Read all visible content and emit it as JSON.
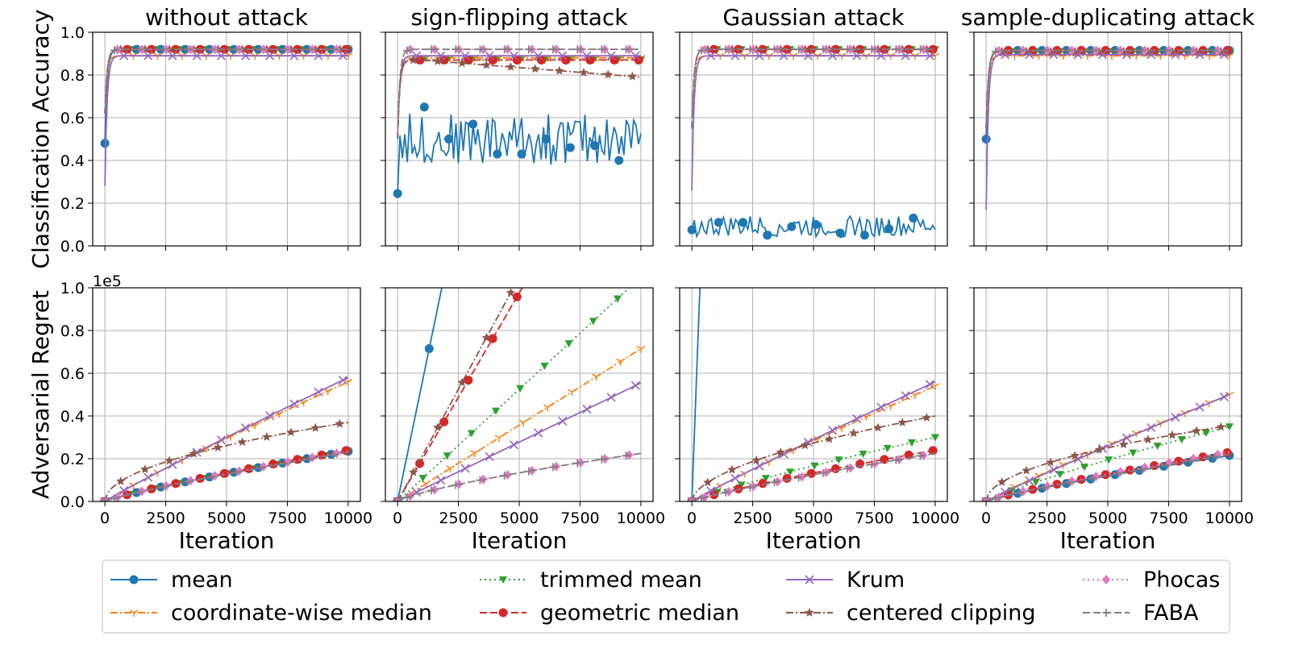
{
  "chart_data": {
    "type": "line",
    "panels": [
      {
        "row": "accuracy",
        "title": "without attack",
        "ylabel": "Classification Accuracy",
        "ylim": [
          0,
          1.0
        ],
        "yticks": [
          "0.0",
          "0.2",
          "0.4",
          "0.6",
          "0.8",
          "1.0"
        ],
        "xlim": [
          -500,
          10500
        ],
        "series": {
          "mean": {
            "start": 0.48,
            "level": 0.92
          },
          "coordinate-wise median": {
            "start": 0.62,
            "level": 0.89
          },
          "trimmed mean": {
            "start": 0.62,
            "level": 0.92
          },
          "geometric median": {
            "start": 0.62,
            "level": 0.92
          },
          "Krum": {
            "start": 0.28,
            "level": 0.89
          },
          "centered clipping": {
            "start": 0.62,
            "level": 0.92
          },
          "Phocas": {
            "start": 0.62,
            "level": 0.92
          },
          "FABA": {
            "start": 0.62,
            "level": 0.92
          }
        }
      },
      {
        "row": "accuracy",
        "title": "sign-flipping attack",
        "ylim": [
          0,
          1.0
        ],
        "xlim": [
          -500,
          10500
        ],
        "series": {
          "mean": {
            "start": 0.245,
            "noisy": true,
            "center": 0.5,
            "amp": 0.12,
            "markers": [
              0.245,
              0.65,
              0.5,
              0.57,
              0.43,
              0.43,
              0.5,
              0.46,
              0.47,
              0.4
            ]
          },
          "coordinate-wise median": {
            "start": 0.5,
            "level": 0.88
          },
          "trimmed mean": {
            "start": 0.5,
            "level": 0.87
          },
          "geometric median": {
            "start": 0.5,
            "level": 0.87
          },
          "Krum": {
            "start": 0.5,
            "level": 0.89
          },
          "centered clipping": {
            "start": 0.5,
            "level": 0.87,
            "end": 0.79
          },
          "Phocas": {
            "start": 0.5,
            "level": 0.92
          },
          "FABA": {
            "start": 0.5,
            "level": 0.92
          }
        }
      },
      {
        "row": "accuracy",
        "title": "Gaussian attack",
        "ylim": [
          0,
          1.0
        ],
        "xlim": [
          -500,
          10500
        ],
        "series": {
          "mean": {
            "start": 0.075,
            "noisy": true,
            "center": 0.09,
            "amp": 0.05,
            "markers": [
              0.075,
              0.11,
              0.11,
              0.05,
              0.09,
              0.1,
              0.06,
              0.05,
              0.08,
              0.13
            ]
          },
          "coordinate-wise median": {
            "start": 0.55,
            "level": 0.89
          },
          "trimmed mean": {
            "start": 0.55,
            "level": 0.92
          },
          "geometric median": {
            "start": 0.55,
            "level": 0.92
          },
          "Krum": {
            "start": 0.26,
            "level": 0.89
          },
          "centered clipping": {
            "start": 0.55,
            "level": 0.92
          },
          "Phocas": {
            "start": 0.55,
            "level": 0.92
          },
          "FABA": {
            "start": 0.55,
            "level": 0.92
          }
        }
      },
      {
        "row": "accuracy",
        "title": "sample-duplicating attack",
        "ylim": [
          0,
          1.0
        ],
        "xlim": [
          -500,
          10500
        ],
        "series": {
          "mean": {
            "start": 0.5,
            "level": 0.915
          },
          "coordinate-wise median": {
            "start": 0.55,
            "level": 0.89
          },
          "trimmed mean": {
            "start": 0.55,
            "level": 0.91
          },
          "geometric median": {
            "start": 0.55,
            "level": 0.915
          },
          "Krum": {
            "start": 0.17,
            "level": 0.895
          },
          "centered clipping": {
            "start": 0.55,
            "level": 0.91
          },
          "Phocas": {
            "start": 0.55,
            "level": 0.915
          },
          "FABA": {
            "start": 0.55,
            "level": 0.915
          }
        }
      },
      {
        "row": "regret",
        "ylabel": "Adversarial Regret",
        "xlabel": "Iteration",
        "ylim": [
          0,
          1.0
        ],
        "yticks": [
          "0.0",
          "0.2",
          "0.4",
          "0.6",
          "0.8",
          "1.0"
        ],
        "yscale_label": "1e5",
        "xlim": [
          -500,
          10500
        ],
        "xticks": [
          "0",
          "2500",
          "5000",
          "7500",
          "10000"
        ],
        "series": {
          "mean": {
            "end": 0.235,
            "p": 0.85
          },
          "coordinate-wise median": {
            "end": 0.56,
            "p": 0.93
          },
          "trimmed mean": {
            "end": 0.235,
            "p": 0.85
          },
          "geometric median": {
            "end": 0.24,
            "p": 0.85
          },
          "Krum": {
            "end": 0.58,
            "p": 0.95
          },
          "centered clipping": {
            "end": 0.37,
            "p": 0.5
          },
          "Phocas": {
            "end": 0.235,
            "p": 0.85
          },
          "FABA": {
            "end": 0.23,
            "p": 0.85
          }
        }
      },
      {
        "row": "regret",
        "xlabel": "Iteration",
        "ylim": [
          0,
          1.0
        ],
        "xlim": [
          -500,
          10500
        ],
        "xticks": [
          "0",
          "2500",
          "5000",
          "7500",
          "10000"
        ],
        "series": {
          "mean": {
            "end": 5.5,
            "p": 1.0
          },
          "coordinate-wise median": {
            "end": 0.715,
            "p": 1.0
          },
          "trimmed mean": {
            "end": 1.05,
            "p": 1.0
          },
          "geometric median": {
            "end": 1.95,
            "p": 1.0
          },
          "Krum": {
            "end": 0.555,
            "p": 1.0
          },
          "centered clipping": {
            "end": 2.1,
            "p": 1.0
          },
          "Phocas": {
            "end": 0.225,
            "p": 0.75
          },
          "FABA": {
            "end": 0.225,
            "p": 0.75
          }
        }
      },
      {
        "row": "regret",
        "xlabel": "Iteration",
        "ylim": [
          0,
          1.0
        ],
        "xlim": [
          -500,
          10500
        ],
        "xticks": [
          "0",
          "2500",
          "5000",
          "7500",
          "10000"
        ],
        "series": {
          "mean": {
            "end": 30,
            "p": 1.0
          },
          "coordinate-wise median": {
            "end": 0.54,
            "p": 0.93
          },
          "trimmed mean": {
            "end": 0.3,
            "p": 0.85
          },
          "geometric median": {
            "end": 0.24,
            "p": 0.85
          },
          "Krum": {
            "end": 0.56,
            "p": 0.95
          },
          "centered clipping": {
            "end": 0.4,
            "p": 0.55
          },
          "Phocas": {
            "end": 0.225,
            "p": 0.85
          },
          "FABA": {
            "end": 0.225,
            "p": 0.85
          }
        }
      },
      {
        "row": "regret",
        "xlabel": "Iteration",
        "ylim": [
          0,
          1.0
        ],
        "xlim": [
          -500,
          10500
        ],
        "xticks": [
          "0",
          "2500",
          "5000",
          "7500",
          "10000"
        ],
        "series": {
          "mean": {
            "end": 0.215,
            "p": 0.85
          },
          "coordinate-wise median": {
            "end": 0.5,
            "p": 0.93
          },
          "trimmed mean": {
            "end": 0.35,
            "p": 0.85
          },
          "geometric median": {
            "end": 0.23,
            "p": 0.85
          },
          "Krum": {
            "end": 0.5,
            "p": 0.95
          },
          "centered clipping": {
            "end": 0.355,
            "p": 0.5
          },
          "Phocas": {
            "end": 0.23,
            "p": 0.85
          },
          "FABA": {
            "end": 0.22,
            "p": 0.85
          }
        }
      }
    ],
    "legend": {
      "placement": "bottom",
      "entries": [
        {
          "label": "mean",
          "color": "#1f77b4",
          "dash": "solid",
          "marker": "circle"
        },
        {
          "label": "coordinate-wise median",
          "color": "#ff7f0e",
          "dash": "dashdot",
          "marker": "tri"
        },
        {
          "label": "trimmed mean",
          "color": "#2ca02c",
          "dash": "dotted",
          "marker": "triangle-down"
        },
        {
          "label": "geometric median",
          "color": "#d62728",
          "dash": "dashed",
          "marker": "circle"
        },
        {
          "label": "Krum",
          "color": "#9467bd",
          "dash": "solid",
          "marker": "x"
        },
        {
          "label": "centered clipping",
          "color": "#8c564b",
          "dash": "dashdot",
          "marker": "star"
        },
        {
          "label": "Phocas",
          "color": "#e377c2",
          "dash": "dotted",
          "marker": "diamond"
        },
        {
          "label": "FABA",
          "color": "#7f7f7f",
          "dash": "dashed",
          "marker": "plus"
        }
      ]
    }
  }
}
